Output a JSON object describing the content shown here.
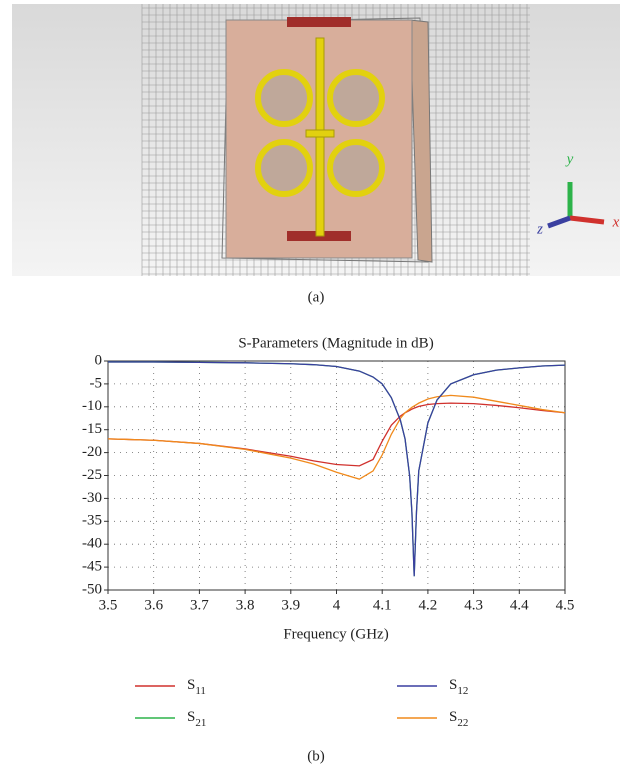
{
  "figure": {
    "panel_a": {
      "label": "(a)",
      "axis_y": "y",
      "axis_z": "z",
      "axis_x": "x"
    },
    "panel_b": {
      "label": "(b)"
    }
  },
  "chart_data": {
    "type": "line",
    "title": "S-Parameters (Magnitude in dB)",
    "x_label": "Frequency (GHz)",
    "x": [
      3.5,
      3.6,
      3.7,
      3.8,
      3.9,
      3.95,
      4.0,
      4.05,
      4.08,
      4.1,
      4.12,
      4.14,
      4.15,
      4.16,
      4.165,
      4.17,
      4.175,
      4.18,
      4.2,
      4.22,
      4.25,
      4.3,
      4.35,
      4.4,
      4.45,
      4.5
    ],
    "series": [
      {
        "name": "S11",
        "color": "#d0312d",
        "values": [
          -17,
          -17.3,
          -18,
          -19.2,
          -20.8,
          -21.8,
          -22.6,
          -22.9,
          -21.5,
          -17.5,
          -14,
          -12,
          -11.3,
          -10.8,
          -10.5,
          -10.3,
          -10.1,
          -9.9,
          -9.5,
          -9.3,
          -9.2,
          -9.3,
          -9.7,
          -10.2,
          -10.8,
          -11.3
        ]
      },
      {
        "name": "S12",
        "color": "#3a3fa0",
        "values": [
          -0.2,
          -0.2,
          -0.3,
          -0.4,
          -0.6,
          -0.8,
          -1.2,
          -2.2,
          -3.5,
          -5,
          -8,
          -13,
          -17,
          -25,
          -33,
          -47,
          -33,
          -24,
          -13.5,
          -8.5,
          -5,
          -3,
          -2,
          -1.5,
          -1.1,
          -0.9
        ]
      },
      {
        "name": "S21",
        "color": "#2db34a",
        "values": [
          -0.2,
          -0.2,
          -0.3,
          -0.4,
          -0.6,
          -0.8,
          -1.2,
          -2.2,
          -3.5,
          -5,
          -8,
          -13,
          -17,
          -25,
          -33,
          -47,
          -33,
          -24,
          -13.5,
          -8.5,
          -5,
          -3,
          -2,
          -1.5,
          -1.1,
          -0.9
        ]
      },
      {
        "name": "S22",
        "color": "#f08a1c",
        "values": [
          -17,
          -17.3,
          -18,
          -19.3,
          -21.2,
          -22.5,
          -24.3,
          -25.8,
          -24,
          -20.5,
          -16,
          -12.5,
          -11.3,
          -10.5,
          -10.1,
          -9.8,
          -9.5,
          -9.2,
          -8.3,
          -7.8,
          -7.5,
          -7.9,
          -8.8,
          -9.7,
          -10.6,
          -11.3
        ]
      }
    ],
    "xlim": [
      3.5,
      4.5
    ],
    "xticks": [
      3.5,
      3.6,
      3.7,
      3.8,
      3.9,
      4,
      4.1,
      4.2,
      4.3,
      4.4,
      4.5
    ],
    "ylim": [
      -50,
      0
    ],
    "yticks": [
      -50,
      -45,
      -40,
      -35,
      -30,
      -25,
      -20,
      -15,
      -10,
      -5,
      0
    ],
    "grid": true
  }
}
